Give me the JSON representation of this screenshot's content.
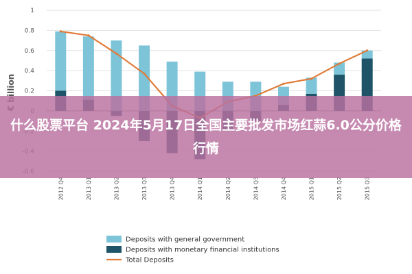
{
  "overlay": {
    "headline": "什么股票平台 2024年5月17日全国主要批发市场红蒜6.0公分价格行情"
  },
  "chart_data": {
    "type": "bar",
    "ylabel": "€ billion",
    "ylim": [
      -0.6,
      1.0
    ],
    "yticks": [
      -0.6,
      -0.4,
      -0.2,
      0,
      0.2,
      0.4,
      0.6,
      0.8,
      1
    ],
    "categories": [
      "2012 Q4",
      "2013 Q1",
      "2013 Q2",
      "2013 Q3",
      "2013 Q4",
      "2014 Q1",
      "2014 Q2",
      "2014 Q3",
      "2014 Q4",
      "2015 Q1",
      "2015 Q2",
      "2015 Q3"
    ],
    "series": [
      {
        "name": "Deposits with general government",
        "type": "bar",
        "color": "#7ec4d8",
        "values": [
          0.59,
          0.63,
          0.7,
          0.65,
          0.49,
          0.39,
          0.29,
          0.29,
          0.18,
          0.16,
          0.12,
          0.08
        ]
      },
      {
        "name": "Deposits with monetary financial institutions",
        "type": "bar",
        "color": "#1f5468",
        "values": [
          0.2,
          0.11,
          -0.05,
          -0.3,
          -0.42,
          -0.48,
          -0.2,
          -0.1,
          0.06,
          0.17,
          0.36,
          0.52
        ]
      },
      {
        "name": "Total Deposits",
        "type": "line",
        "color": "#e07b39",
        "values": [
          0.79,
          0.75,
          0.57,
          0.37,
          0.05,
          -0.07,
          0.09,
          0.15,
          0.27,
          0.32,
          0.47,
          0.6
        ]
      }
    ],
    "legend_position": "bottom-left"
  }
}
